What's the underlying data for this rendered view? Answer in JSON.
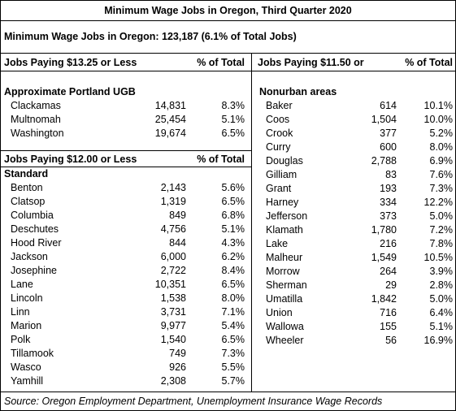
{
  "title": "Minimum Wage Jobs in Oregon, Third Quarter 2020",
  "subtitle": "Minimum Wage Jobs in Oregon: 123,187 (6.1% of Total Jobs)",
  "left_header": {
    "label": "Jobs Paying $13.25 or Less",
    "pct_label": "% of Total"
  },
  "portland": {
    "title": "Approximate Portland UGB",
    "rows": [
      [
        "Clackamas",
        "14,831",
        "8.3%"
      ],
      [
        "Multnomah",
        "25,454",
        "5.1%"
      ],
      [
        "Washington",
        "19,674",
        "6.5%"
      ]
    ]
  },
  "mid_header": {
    "label": "Jobs Paying $12.00 or Less",
    "pct_label": "% of Total"
  },
  "standard": {
    "title": "Standard",
    "rows": [
      [
        "Benton",
        "2,143",
        "5.6%"
      ],
      [
        "Clatsop",
        "1,319",
        "6.5%"
      ],
      [
        "Columbia",
        "849",
        "6.8%"
      ],
      [
        "Deschutes",
        "4,756",
        "5.1%"
      ],
      [
        "Hood River",
        "844",
        "4.3%"
      ],
      [
        "Jackson",
        "6,000",
        "6.2%"
      ],
      [
        "Josephine",
        "2,722",
        "8.4%"
      ],
      [
        "Lane",
        "10,351",
        "6.5%"
      ],
      [
        "Lincoln",
        "1,538",
        "8.0%"
      ],
      [
        "Linn",
        "3,731",
        "7.1%"
      ],
      [
        "Marion",
        "9,977",
        "5.4%"
      ],
      [
        "Polk",
        "1,540",
        "6.5%"
      ],
      [
        "Tillamook",
        "749",
        "7.3%"
      ],
      [
        "Wasco",
        "926",
        "5.5%"
      ],
      [
        "Yamhill",
        "2,308",
        "5.7%"
      ]
    ]
  },
  "right_header": {
    "label": "Jobs Paying $11.50 or",
    "pct_label": "% of Total"
  },
  "nonurban": {
    "title": "Nonurban areas",
    "rows": [
      [
        "Baker",
        "614",
        "10.1%"
      ],
      [
        "Coos",
        "1,504",
        "10.0%"
      ],
      [
        "Crook",
        "377",
        "5.2%"
      ],
      [
        "Curry",
        "600",
        "8.0%"
      ],
      [
        "Douglas",
        "2,788",
        "6.9%"
      ],
      [
        "Gilliam",
        "83",
        "7.6%"
      ],
      [
        "Grant",
        "193",
        "7.3%"
      ],
      [
        "Harney",
        "334",
        "12.2%"
      ],
      [
        "Jefferson",
        "373",
        "5.0%"
      ],
      [
        "Klamath",
        "1,780",
        "7.2%"
      ],
      [
        "Lake",
        "216",
        "7.8%"
      ],
      [
        "Malheur",
        "1,549",
        "10.5%"
      ],
      [
        "Morrow",
        "264",
        "3.9%"
      ],
      [
        "Sherman",
        "29",
        "2.8%"
      ],
      [
        "Umatilla",
        "1,842",
        "5.0%"
      ],
      [
        "Union",
        "716",
        "6.4%"
      ],
      [
        "Wallowa",
        "155",
        "5.1%"
      ],
      [
        "Wheeler",
        "56",
        "16.9%"
      ]
    ]
  },
  "source": "Source: Oregon Employment Department, Unemployment Insurance Wage Records"
}
